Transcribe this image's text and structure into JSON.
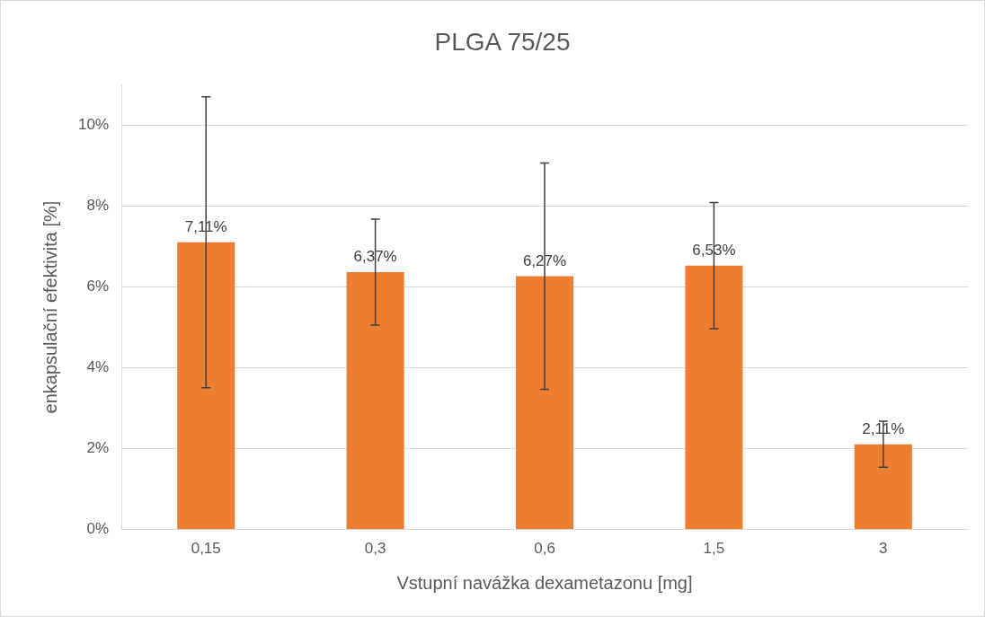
{
  "chart_data": {
    "type": "bar",
    "title": "PLGA 75/25",
    "xlabel": "Vstupní navážka dexametazonu [mg]",
    "ylabel": "enkapsulační efektivita [%]",
    "categories": [
      "0,15",
      "0,3",
      "0,6",
      "1,5",
      "3"
    ],
    "values": [
      7.11,
      6.37,
      6.27,
      6.53,
      2.11
    ],
    "value_labels": [
      "7,11%",
      "6,37%",
      "6,27%",
      "6,53%",
      "2,11%"
    ],
    "errors": [
      3.6,
      1.31,
      2.8,
      1.56,
      0.57
    ],
    "color": "#ed7d31",
    "ylim": [
      0,
      11
    ],
    "yticks": [
      {
        "value": 0,
        "label": "0%"
      },
      {
        "value": 2,
        "label": "2%"
      },
      {
        "value": 4,
        "label": "4%"
      },
      {
        "value": 6,
        "label": "6%"
      },
      {
        "value": 8,
        "label": "8%"
      },
      {
        "value": 10,
        "label": "10%"
      }
    ],
    "grid": "y",
    "legend": false
  }
}
